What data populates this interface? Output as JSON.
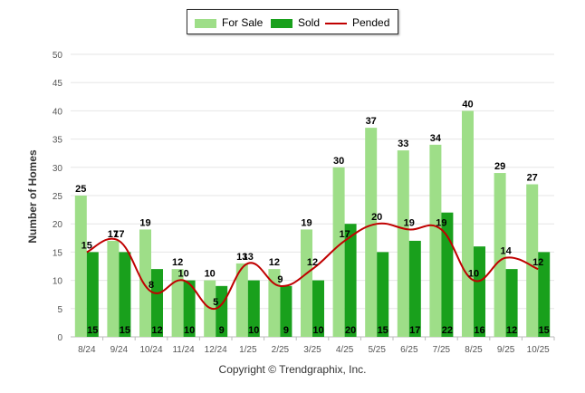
{
  "chart_data": {
    "type": "bar",
    "categories": [
      "8/24",
      "9/24",
      "10/24",
      "11/24",
      "12/24",
      "1/25",
      "2/25",
      "3/25",
      "4/25",
      "5/25",
      "6/25",
      "7/25",
      "8/25",
      "9/25",
      "10/25"
    ],
    "series": [
      {
        "name": "For Sale",
        "type": "bar",
        "color": "#9ede88",
        "values": [
          25,
          17,
          19,
          12,
          10,
          13,
          12,
          19,
          30,
          37,
          33,
          34,
          40,
          29,
          27
        ]
      },
      {
        "name": "Sold",
        "type": "bar",
        "color": "#19a01c",
        "values": [
          15,
          15,
          12,
          10,
          9,
          10,
          9,
          10,
          20,
          15,
          17,
          22,
          16,
          12,
          15
        ]
      },
      {
        "name": "Pended",
        "type": "line",
        "color": "#c00000",
        "values": [
          15,
          17,
          8,
          10,
          5,
          13,
          9,
          12,
          17,
          20,
          19,
          19,
          10,
          14,
          12
        ]
      }
    ],
    "ylabel": "Number of Homes",
    "xlabel": "",
    "ylim": [
      0,
      50
    ],
    "yticks": [
      0,
      5,
      10,
      15,
      20,
      25,
      30,
      35,
      40,
      45,
      50
    ],
    "grid": true,
    "legend": "top-center"
  },
  "legend": {
    "for_sale": "For Sale",
    "sold": "Sold",
    "pended": "Pended"
  },
  "footer": {
    "copyright": "Copyright © Trendgraphix, Inc."
  }
}
